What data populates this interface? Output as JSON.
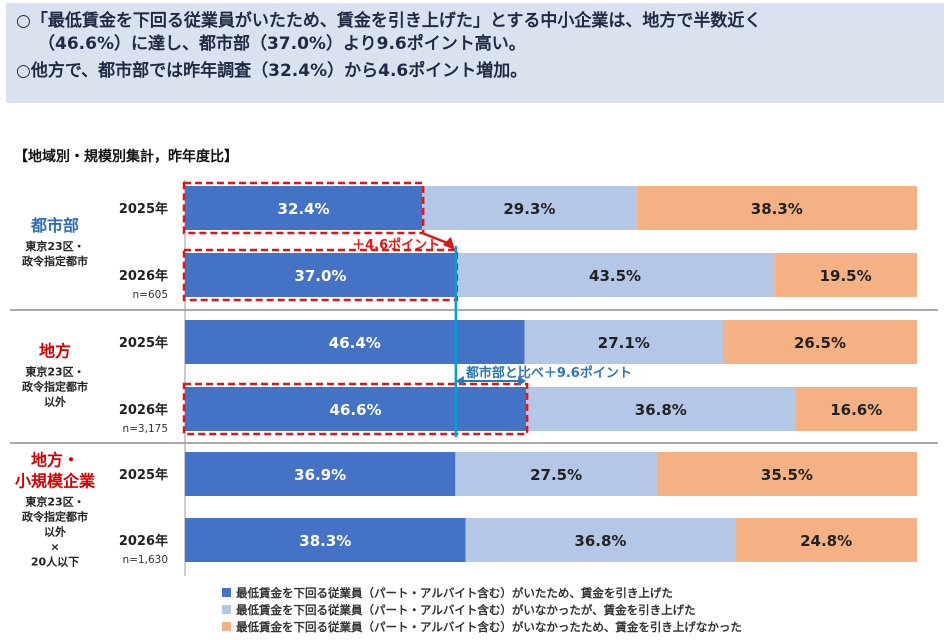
{
  "summary": {
    "line1": "○「最低賃金を下回る従業員がいたため、賃金を引き上げた」とする中小企業は、地方で半数近く",
    "line2": "（46.6%）に達し、都市部（37.0%）より9.6ポイント高い。",
    "line3": "○他方で、都市部では昨年調査（32.4%）から4.6ポイント増加。"
  },
  "section_title": "【地域別・規模別集計，昨年度比】",
  "colors": {
    "raised_below_min": "#4472c4",
    "raised_without": "#b4c7e7",
    "not_raised": "#f4b183",
    "group_urban": "#2e6bb8",
    "group_rural": "#d40000",
    "highlight": "#e31414",
    "compare_line": "#00a0d8",
    "compare_text": "#2e75b6"
  },
  "chart_data": {
    "type": "bar",
    "orientation": "horizontal",
    "stacked": true,
    "unit": "%",
    "series": [
      {
        "name": "最低賃金を下回る従業員（パート・アルバイト含む）がいたため、賃金を引き上げた",
        "color": "#4472c4"
      },
      {
        "name": "最低賃金を下回る従業員（パート・アルバイト含む）がいなかったが、賃金を引き上げた",
        "color": "#b4c7e7"
      },
      {
        "name": "最低賃金を下回る従業員（パート・アルバイト含む）がいなかったため、賃金を引き上げなかった",
        "color": "#f4b183"
      }
    ],
    "groups": [
      {
        "name": "都市部",
        "sublabel": [
          "東京23区・",
          "政令指定都市"
        ],
        "name_color": "#2e6bb8",
        "rows": [
          {
            "year": "2025年",
            "n": "",
            "values": [
              32.4,
              29.3,
              38.3
            ]
          },
          {
            "year": "2026年",
            "n": "n=605",
            "values": [
              37.0,
              43.5,
              19.5
            ]
          }
        ]
      },
      {
        "name": "地方",
        "sublabel": [
          "東京23区・",
          "政令指定都市",
          "以外"
        ],
        "name_color": "#d40000",
        "rows": [
          {
            "year": "2025年",
            "n": "",
            "values": [
              46.4,
              27.1,
              26.5
            ]
          },
          {
            "year": "2026年",
            "n": "n=3,175",
            "values": [
              46.6,
              36.8,
              16.6
            ]
          }
        ]
      },
      {
        "name": "地方・\n小規模企業",
        "sublabel": [
          "東京23区・",
          "政令指定都市",
          "以外",
          "×",
          "20人以下"
        ],
        "name_color": "#d40000",
        "rows": [
          {
            "year": "2025年",
            "n": "",
            "values": [
              36.9,
              27.5,
              35.5
            ]
          },
          {
            "year": "2026年",
            "n": "n=1,630",
            "values": [
              38.3,
              36.8,
              24.8
            ]
          }
        ]
      }
    ],
    "annotations": {
      "urban_increase": "＋4.6ポイント",
      "compare_to_urban": "都市部と比べ＋9.6ポイント"
    }
  }
}
